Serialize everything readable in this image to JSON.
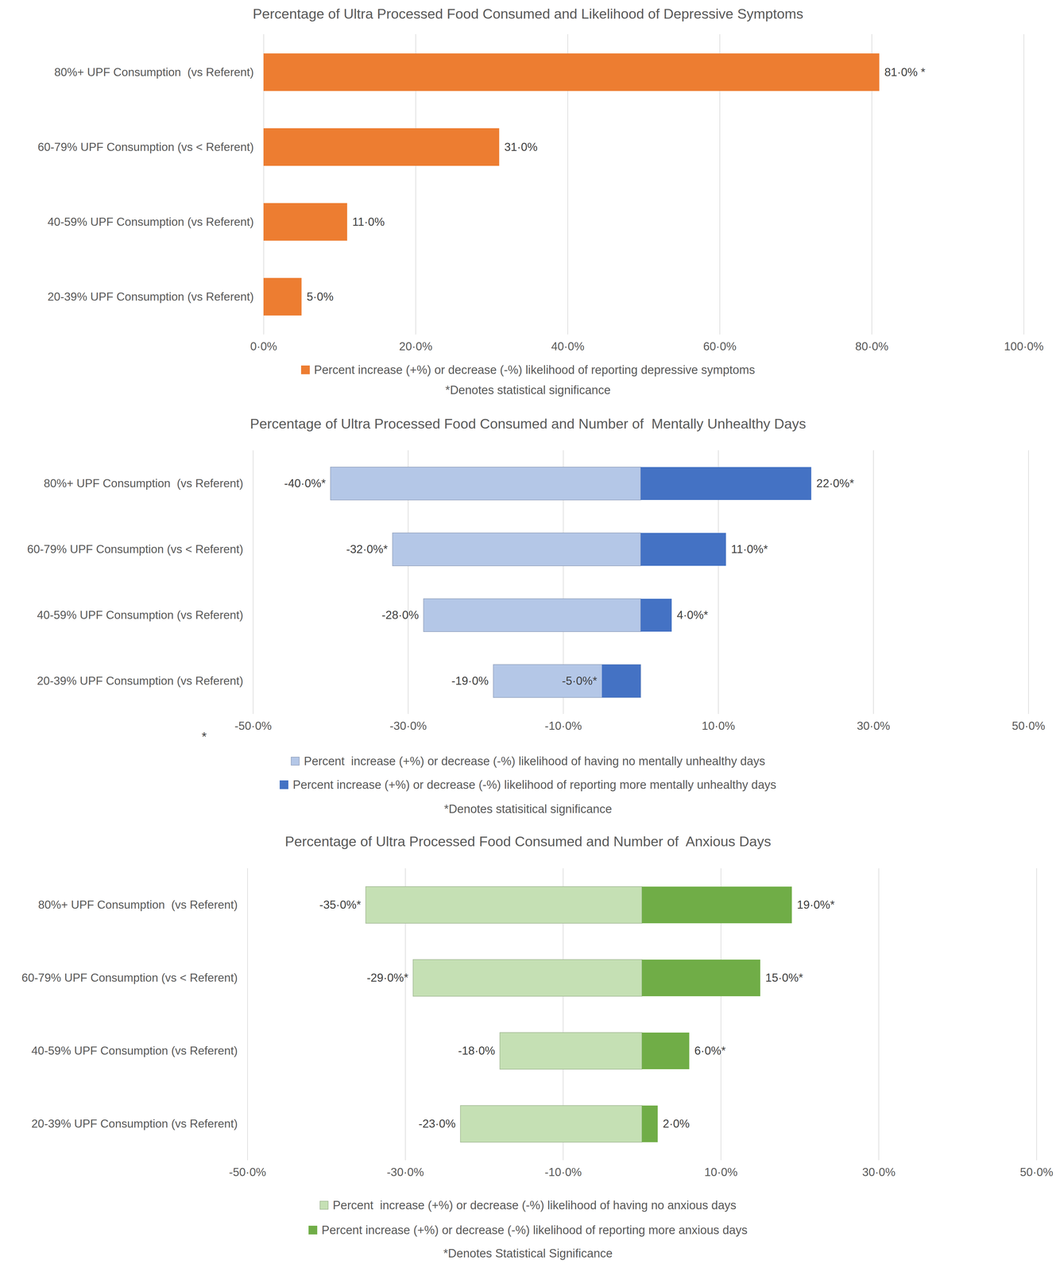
{
  "chart_data": [
    {
      "type": "bar",
      "orientation": "horizontal",
      "title": "Percentage of Ultra Processed Food Consumed and Likelihood of Depressive Symptoms",
      "categories": [
        "80%+ UPF Consumption  (vs Referent)",
        "60-79% UPF Consumption (vs < Referent)",
        "40-59% UPF Consumption (vs Referent)",
        "20-39% UPF Consumption (vs Referent)"
      ],
      "series": [
        {
          "name": "Percent increase (+%) or decrease (-%) likelihood of reporting depressive symptoms",
          "color": "#ED7D31",
          "values": [
            81,
            31,
            11,
            5
          ],
          "value_labels": [
            "81·0% *",
            "31·0%",
            "11·0%",
            "5·0%"
          ]
        }
      ],
      "xlim": [
        0,
        100
      ],
      "xticks": [
        {
          "value": 0,
          "label": "0·0%"
        },
        {
          "value": 20,
          "label": "20·0%"
        },
        {
          "value": 40,
          "label": "40·0%"
        },
        {
          "value": 60,
          "label": "60·0%"
        },
        {
          "value": 80,
          "label": "80·0%"
        },
        {
          "value": 100,
          "label": "100·0%"
        }
      ],
      "grid": true,
      "data_labels": true,
      "legend": "bottom",
      "note": "*Denotes statistical significance"
    },
    {
      "type": "bar",
      "orientation": "horizontal",
      "title": "Percentage of Ultra Processed Food Consumed and Number of  Mentally Unhealthy Days",
      "categories": [
        "80%+ UPF Consumption  (vs Referent)",
        "60-79% UPF Consumption (vs < Referent)",
        "40-59% UPF Consumption (vs Referent)",
        "20-39% UPF Consumption (vs Referent)"
      ],
      "series": [
        {
          "name": "Percent  increase (+%) or decrease (-%) likelihood of having no mentally unhealthy days",
          "color": "#B4C7E7",
          "values": [
            -40,
            -32,
            -28,
            -19
          ],
          "value_labels": [
            "-40·0%*",
            "-32·0%*",
            "-28·0%",
            "-19·0%"
          ]
        },
        {
          "name": "Percent increase (+%) or decrease (-%) likelihood of reporting more mentally unhealthy days",
          "color": "#4472C4",
          "values": [
            22,
            11,
            4,
            -5
          ],
          "value_labels": [
            "22·0%*",
            "11·0%*",
            "4·0%*",
            "-5·0%*"
          ]
        }
      ],
      "xlim": [
        -50,
        50
      ],
      "xticks": [
        {
          "value": -50,
          "label": "-50·0%"
        },
        {
          "value": -30,
          "label": "-30·0%"
        },
        {
          "value": -10,
          "label": "-10·0%"
        },
        {
          "value": 10,
          "label": "10·0%"
        },
        {
          "value": 30,
          "label": "30·0%"
        },
        {
          "value": 50,
          "label": "50·0%"
        }
      ],
      "grid": true,
      "data_labels": true,
      "legend": "bottom",
      "annotation": "*",
      "note": "*Denotes statisitical significance"
    },
    {
      "type": "bar",
      "orientation": "horizontal",
      "title": "Percentage of Ultra Processed Food Consumed and Number of  Anxious Days",
      "categories": [
        "80%+ UPF Consumption  (vs Referent)",
        "60-79% UPF Consumption (vs < Referent)",
        "40-59% UPF Consumption (vs Referent)",
        "20-39% UPF Consumption (vs Referent)"
      ],
      "series": [
        {
          "name": "Percent  increase (+%) or decrease (-%) likelihood of having no anxious days",
          "color": "#C5E0B4",
          "values": [
            -35,
            -29,
            -18,
            -23
          ],
          "value_labels": [
            "-35·0%*",
            "-29·0%*",
            "-18·0%",
            "-23·0%"
          ]
        },
        {
          "name": "Percent increase (+%) or decrease (-%) likelihood of reporting more anxious days",
          "color": "#70AD47",
          "values": [
            19,
            15,
            6,
            2
          ],
          "value_labels": [
            "19·0%*",
            "15·0%*",
            "6·0%*",
            "2·0%"
          ]
        }
      ],
      "xlim": [
        -50,
        50
      ],
      "xticks": [
        {
          "value": -50,
          "label": "-50·0%"
        },
        {
          "value": -30,
          "label": "-30·0%"
        },
        {
          "value": -10,
          "label": "-10·0%"
        },
        {
          "value": 10,
          "label": "10·0%"
        },
        {
          "value": 30,
          "label": "30·0%"
        },
        {
          "value": 50,
          "label": "50·0%"
        }
      ],
      "grid": true,
      "data_labels": true,
      "legend": "bottom",
      "note": "*Denotes Statistical Significance"
    }
  ]
}
